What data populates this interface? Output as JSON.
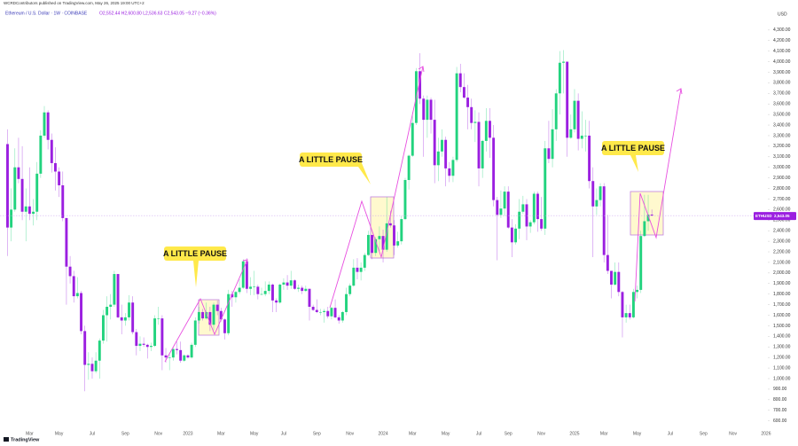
{
  "header": {
    "publisher": "WCRDContributors published on TradingView.com, May 26, 2025 19:00 UTC+2",
    "symbol": "Ethereum / U.S. Dollar · 1W · COINBASE",
    "ohlc": "O2,552.44 H2,600.80 L2,536.63 C2,543.05 −9.27 (−0.36%)"
  },
  "footer": "TradingView",
  "chart_data": {
    "type": "candlestick",
    "symbol": "ETHUSD",
    "currency": "USD",
    "last_price_label": "2,543.05",
    "up_color": "#22d37e",
    "down_color": "#9b1fe0",
    "annotations": [
      "A LITTLE PAUSE",
      "A LITTLE PAUSE",
      "A LITTLE PAUSE"
    ],
    "ylim": [
      530,
      4500
    ],
    "yticks": [
      {
        "value": 600,
        "label": "600.00"
      },
      {
        "value": 700,
        "label": "700.00"
      },
      {
        "value": 800,
        "label": "800.00"
      },
      {
        "value": 900,
        "label": "900.00"
      },
      {
        "value": 1000,
        "label": "1,000.00"
      },
      {
        "value": 1100,
        "label": "1,100.00"
      },
      {
        "value": 1200,
        "label": "1,200.00"
      },
      {
        "value": 1300,
        "label": "1,300.00"
      },
      {
        "value": 1400,
        "label": "1,400.00"
      },
      {
        "value": 1500,
        "label": "1,500.00"
      },
      {
        "value": 1600,
        "label": "1,600.00"
      },
      {
        "value": 1700,
        "label": "1,700.00"
      },
      {
        "value": 1800,
        "label": "1,800.00"
      },
      {
        "value": 1900,
        "label": "1,900.00"
      },
      {
        "value": 2000,
        "label": "2,000.00"
      },
      {
        "value": 2100,
        "label": "2,100.00"
      },
      {
        "value": 2200,
        "label": "2,200.00"
      },
      {
        "value": 2300,
        "label": "2,300.00"
      },
      {
        "value": 2400,
        "label": "2,400.00"
      },
      {
        "value": 2500,
        "label": "2,500.00"
      },
      {
        "value": 2600,
        "label": "2,600.00"
      },
      {
        "value": 2700,
        "label": "2,700.00"
      },
      {
        "value": 2800,
        "label": "2,800.00"
      },
      {
        "value": 2900,
        "label": "2,900.00"
      },
      {
        "value": 3000,
        "label": "3,000.00"
      },
      {
        "value": 3100,
        "label": "3,100.00"
      },
      {
        "value": 3200,
        "label": "3,200.00"
      },
      {
        "value": 3300,
        "label": "3,300.00"
      },
      {
        "value": 3400,
        "label": "3,400.00"
      },
      {
        "value": 3500,
        "label": "3,500.00"
      },
      {
        "value": 3600,
        "label": "3,600.00"
      },
      {
        "value": 3700,
        "label": "3,700.00"
      },
      {
        "value": 3800,
        "label": "3,800.00"
      },
      {
        "value": 3900,
        "label": "3,900.00"
      },
      {
        "value": 4000,
        "label": "4,000.00"
      },
      {
        "value": 4100,
        "label": "4,100.00"
      },
      {
        "value": 4200,
        "label": "4,200.00"
      },
      {
        "value": 4300,
        "label": "4,300.00"
      }
    ],
    "categories": [
      null,
      null,
      null,
      null,
      null,
      null,
      "Mar",
      null,
      null,
      null,
      null,
      null,
      null,
      null,
      "May",
      null,
      null,
      null,
      null,
      null,
      null,
      null,
      null,
      "Jul",
      null,
      null,
      null,
      null,
      null,
      null,
      null,
      null,
      "Sep",
      null,
      null,
      null,
      null,
      null,
      null,
      null,
      null,
      "Nov",
      null,
      null,
      null,
      null,
      null,
      null,
      null,
      "2023",
      null,
      null,
      null,
      null,
      null,
      null,
      null,
      null,
      "Mar",
      null,
      null,
      null,
      null,
      null,
      null,
      null,
      null,
      "May",
      null,
      null,
      null,
      null,
      null,
      null,
      null,
      "Jul",
      null,
      null,
      null,
      null,
      null,
      null,
      null,
      null,
      "Sep",
      null,
      null,
      null,
      null,
      null,
      null,
      null,
      null,
      "Nov",
      null,
      null,
      null,
      null,
      null,
      null,
      null,
      null,
      "2024",
      null,
      null,
      null,
      null,
      null,
      null,
      null,
      "Mar",
      null,
      null,
      null,
      null,
      null,
      null,
      null,
      null,
      "May",
      null,
      null,
      null,
      null,
      null,
      null,
      null,
      null,
      "Jul",
      null,
      null,
      null,
      null,
      null,
      null,
      null,
      "Sep",
      null,
      null,
      null,
      null,
      null,
      null,
      null,
      null,
      "Nov",
      null,
      null,
      null,
      null,
      null,
      null,
      null,
      null,
      "2025",
      null,
      null,
      null,
      null,
      null,
      null,
      null,
      "Mar",
      null,
      null,
      null,
      null,
      null,
      null,
      null,
      null,
      "May",
      null,
      null,
      null,
      null,
      null,
      null,
      null,
      null,
      "Jul",
      null,
      null,
      null,
      null,
      null,
      null,
      null,
      null,
      "Sep",
      null,
      null,
      null,
      null,
      null,
      null,
      null,
      "Nov",
      null,
      null,
      null,
      null,
      null,
      null,
      null,
      null,
      "2026"
    ],
    "open": [
      3220,
      2430,
      2600,
      3000,
      2890,
      2580,
      2630,
      2560,
      2580,
      2940,
      3300,
      3520,
      3260,
      3040,
      2960,
      2830,
      2520,
      2060,
      1970,
      1780,
      1810,
      1450,
      1130,
      1140,
      1070,
      1170,
      1360,
      1600,
      1680,
      1700,
      1990,
      1580,
      1550,
      1580,
      1720,
      1440,
      1310,
      1330,
      1320,
      1300,
      1310,
      1570,
      1570,
      1220,
      1200,
      1200,
      1280,
      1270,
      1170,
      1220,
      1200,
      1320,
      1550,
      1630,
      1570,
      1630,
      1510,
      1700,
      1640,
      1560,
      1430,
      1800,
      1770,
      1820,
      1860,
      2110,
      1850,
      1870,
      1870,
      1800,
      1800,
      1830,
      1890,
      1740,
      1720,
      1890,
      1910,
      1880,
      1930,
      1850,
      1860,
      1830,
      1850,
      1680,
      1650,
      1630,
      1630,
      1640,
      1590,
      1670,
      1580,
      1550,
      1630,
      1800,
      1880,
      2050,
      2010,
      2050,
      2170,
      2360,
      2190,
      2320,
      2350,
      2220,
      2470,
      2450,
      2260,
      2300,
      2510,
      2880,
      3110,
      3420,
      3910,
      3650,
      3450,
      3640,
      3450,
      3020,
      3150,
      3260,
      2990,
      2920,
      3070,
      3890,
      3760,
      3660,
      3570,
      3420,
      3430,
      2990,
      3250,
      3440,
      3280,
      2690,
      2550,
      2610,
      2770,
      2430,
      2290,
      2420,
      2580,
      2650,
      2440,
      2480,
      2750,
      2510,
      2420,
      3180,
      3080,
      3360,
      3700,
      3990,
      4000,
      3280,
      3360,
      3630,
      3270,
      3300,
      3300,
      2870,
      2630,
      2690,
      2820,
      2170,
      2020,
      1890,
      2010,
      1820,
      1580,
      1620,
      1580,
      1820,
      1840,
      2350,
      2490,
      2552.44,
      null,
      null,
      null,
      null,
      null,
      null,
      null,
      null,
      null,
      null,
      null,
      null,
      null,
      null,
      null,
      null,
      null,
      null,
      null,
      null,
      null,
      null,
      null,
      null,
      null,
      null,
      null,
      null,
      null,
      null,
      null
    ],
    "high": [
      3360,
      2800,
      3180,
      3280,
      3200,
      2800,
      3000,
      2700,
      3050,
      3350,
      3580,
      3540,
      3320,
      3190,
      3000,
      2960,
      2520,
      2160,
      2020,
      1960,
      1830,
      1500,
      1250,
      1200,
      1250,
      1380,
      1650,
      1780,
      1800,
      2020,
      1990,
      1700,
      1620,
      1790,
      1780,
      1470,
      1400,
      1390,
      1330,
      1340,
      1600,
      1680,
      1600,
      1290,
      1230,
      1300,
      1350,
      1350,
      1230,
      1230,
      1340,
      1580,
      1680,
      1660,
      1720,
      1680,
      1720,
      1740,
      1670,
      1570,
      1840,
      1830,
      1830,
      1940,
      2130,
      2140,
      1960,
      2020,
      1890,
      1860,
      1920,
      1920,
      1900,
      1760,
      1900,
      1950,
      1980,
      2020,
      1940,
      1890,
      1880,
      1880,
      1850,
      1700,
      1750,
      1660,
      1660,
      1680,
      1680,
      1750,
      1600,
      1640,
      1860,
      1900,
      2130,
      2140,
      2100,
      2190,
      2400,
      2360,
      2340,
      2440,
      2410,
      2720,
      2590,
      2500,
      2390,
      2540,
      2900,
      3120,
      3520,
      3940,
      4080,
      3680,
      3680,
      3660,
      3640,
      3280,
      3360,
      3290,
      3050,
      3100,
      3950,
      3980,
      3890,
      3780,
      3650,
      3540,
      3520,
      3260,
      3560,
      3560,
      3400,
      2720,
      2780,
      2820,
      2820,
      2510,
      2460,
      2700,
      2730,
      2700,
      2500,
      2770,
      2770,
      2720,
      3250,
      3440,
      3550,
      3740,
      4100,
      4110,
      4000,
      3500,
      3740,
      3700,
      3530,
      3450,
      3440,
      3000,
      2800,
      2850,
      2850,
      2550,
      2020,
      2100,
      2100,
      1830,
      1700,
      1700,
      1850,
      1880,
      2400,
      2740,
      2740,
      2600.8,
      null,
      null,
      null,
      null,
      null,
      null,
      null,
      null,
      null,
      null,
      null,
      null,
      null,
      null,
      null,
      null,
      null,
      null,
      null,
      null,
      null,
      null,
      null,
      null,
      null,
      null,
      null,
      null,
      null,
      null,
      null
    ],
    "low": [
      2160,
      2300,
      2580,
      2850,
      2500,
      2300,
      2500,
      2450,
      2500,
      2900,
      3280,
      3170,
      2950,
      2780,
      2720,
      2490,
      1700,
      1900,
      1720,
      1760,
      1420,
      880,
      990,
      1000,
      1050,
      1000,
      1330,
      1350,
      1560,
      1680,
      1570,
      1420,
      1500,
      1550,
      1420,
      1220,
      1260,
      1300,
      1190,
      1260,
      1300,
      1510,
      1080,
      1150,
      1080,
      1170,
      1230,
      1150,
      1160,
      1190,
      1190,
      1300,
      1520,
      1550,
      1560,
      1450,
      1460,
      1600,
      1540,
      1370,
      1410,
      1680,
      1720,
      1800,
      1850,
      1810,
      1790,
      1790,
      1750,
      1790,
      1780,
      1800,
      1630,
      1630,
      1710,
      1840,
      1840,
      1850,
      1840,
      1820,
      1800,
      1820,
      1550,
      1640,
      1620,
      1600,
      1530,
      1570,
      1560,
      1570,
      1520,
      1530,
      1600,
      1780,
      1870,
      1940,
      1930,
      2020,
      2160,
      2130,
      2160,
      2210,
      2100,
      2200,
      2430,
      2170,
      2240,
      2270,
      2500,
      2790,
      3100,
      3400,
      3600,
      3100,
      3280,
      3320,
      2850,
      2870,
      3100,
      2820,
      2860,
      2860,
      3050,
      3710,
      3650,
      3360,
      3360,
      3240,
      2820,
      2900,
      3150,
      3090,
      2630,
      2120,
      2520,
      2540,
      2420,
      2150,
      2270,
      2320,
      2560,
      2310,
      2380,
      2460,
      2390,
      2400,
      2360,
      3040,
      3000,
      3250,
      3500,
      3700,
      3100,
      3270,
      3330,
      3160,
      3180,
      3150,
      2800,
      2150,
      2550,
      2630,
      2100,
      1990,
      1760,
      1880,
      1780,
      1390,
      1530,
      1560,
      1570,
      1760,
      1810,
      2340,
      2400,
      2536.63,
      null,
      null,
      null,
      null,
      null,
      null,
      null,
      null,
      null,
      null,
      null,
      null,
      null,
      null,
      null,
      null,
      null,
      null,
      null,
      null,
      null,
      null,
      null,
      null,
      null,
      null,
      null,
      null,
      null,
      null,
      null
    ],
    "close": [
      2430,
      2600,
      3000,
      2890,
      2580,
      2630,
      2560,
      2580,
      2940,
      3300,
      3520,
      3260,
      3040,
      2960,
      2830,
      2520,
      2060,
      1970,
      1780,
      1810,
      1450,
      1130,
      1140,
      1070,
      1170,
      1360,
      1600,
      1680,
      1700,
      1990,
      1580,
      1550,
      1580,
      1720,
      1440,
      1310,
      1330,
      1320,
      1300,
      1310,
      1570,
      1570,
      1220,
      1200,
      1200,
      1280,
      1270,
      1170,
      1220,
      1200,
      1320,
      1550,
      1630,
      1570,
      1630,
      1510,
      1700,
      1640,
      1560,
      1430,
      1800,
      1770,
      1820,
      1860,
      2110,
      1850,
      1870,
      1870,
      1800,
      1800,
      1830,
      1890,
      1740,
      1720,
      1890,
      1910,
      1880,
      1930,
      1850,
      1860,
      1830,
      1850,
      1680,
      1650,
      1630,
      1630,
      1640,
      1590,
      1670,
      1580,
      1550,
      1630,
      1800,
      1880,
      2050,
      2010,
      2050,
      2170,
      2360,
      2190,
      2320,
      2350,
      2220,
      2470,
      2450,
      2260,
      2300,
      2510,
      2880,
      3110,
      3420,
      3910,
      3650,
      3450,
      3640,
      3450,
      3020,
      3150,
      3260,
      2990,
      2920,
      3070,
      3890,
      3760,
      3660,
      3570,
      3420,
      3430,
      2990,
      3250,
      3440,
      3280,
      2690,
      2550,
      2610,
      2770,
      2430,
      2290,
      2420,
      2580,
      2650,
      2440,
      2480,
      2750,
      2510,
      2420,
      3180,
      3080,
      3360,
      3700,
      3990,
      4000,
      3280,
      3360,
      3630,
      3270,
      3300,
      3300,
      2870,
      2630,
      2690,
      2820,
      2170,
      2020,
      1890,
      2010,
      1820,
      1580,
      1620,
      1580,
      1820,
      1840,
      2350,
      2490,
      2552.44,
      2543.05,
      null,
      null,
      null,
      null,
      null,
      null,
      null,
      null,
      null,
      null,
      null,
      null,
      null,
      null,
      null,
      null,
      null,
      null,
      null,
      null,
      null,
      null,
      null,
      null,
      null,
      null,
      null,
      null,
      null,
      null,
      null
    ]
  }
}
